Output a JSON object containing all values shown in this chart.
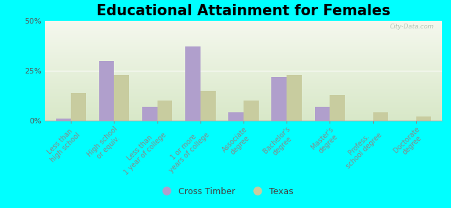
{
  "title": "Educational Attainment for Females",
  "categories": [
    "Less than\nhigh school",
    "High school\nor equiv.",
    "Less than\n1 year of college",
    "1 or more\nyears of college",
    "Associate\ndegree",
    "Bachelor's\ndegree",
    "Master's\ndegree",
    "Profess.\nschool degree",
    "Doctorate\ndegree"
  ],
  "cross_timber": [
    1,
    30,
    7,
    37,
    4,
    22,
    7,
    0,
    0
  ],
  "texas": [
    14,
    23,
    10,
    15,
    10,
    23,
    13,
    4,
    2
  ],
  "cross_timber_color": "#b09fcc",
  "texas_color": "#c8cc9f",
  "ylim": [
    0,
    50
  ],
  "yticks": [
    0,
    25,
    50
  ],
  "legend_labels": [
    "Cross Timber",
    "Texas"
  ],
  "bar_width": 0.35,
  "fig_bg_color": "#00ffff",
  "plot_bg_color_bottom": "#f5f8ee",
  "plot_bg_color_top": "#d8e8c8",
  "watermark": "City-Data.com",
  "title_fontsize": 15,
  "tick_fontsize": 7,
  "legend_fontsize": 9
}
